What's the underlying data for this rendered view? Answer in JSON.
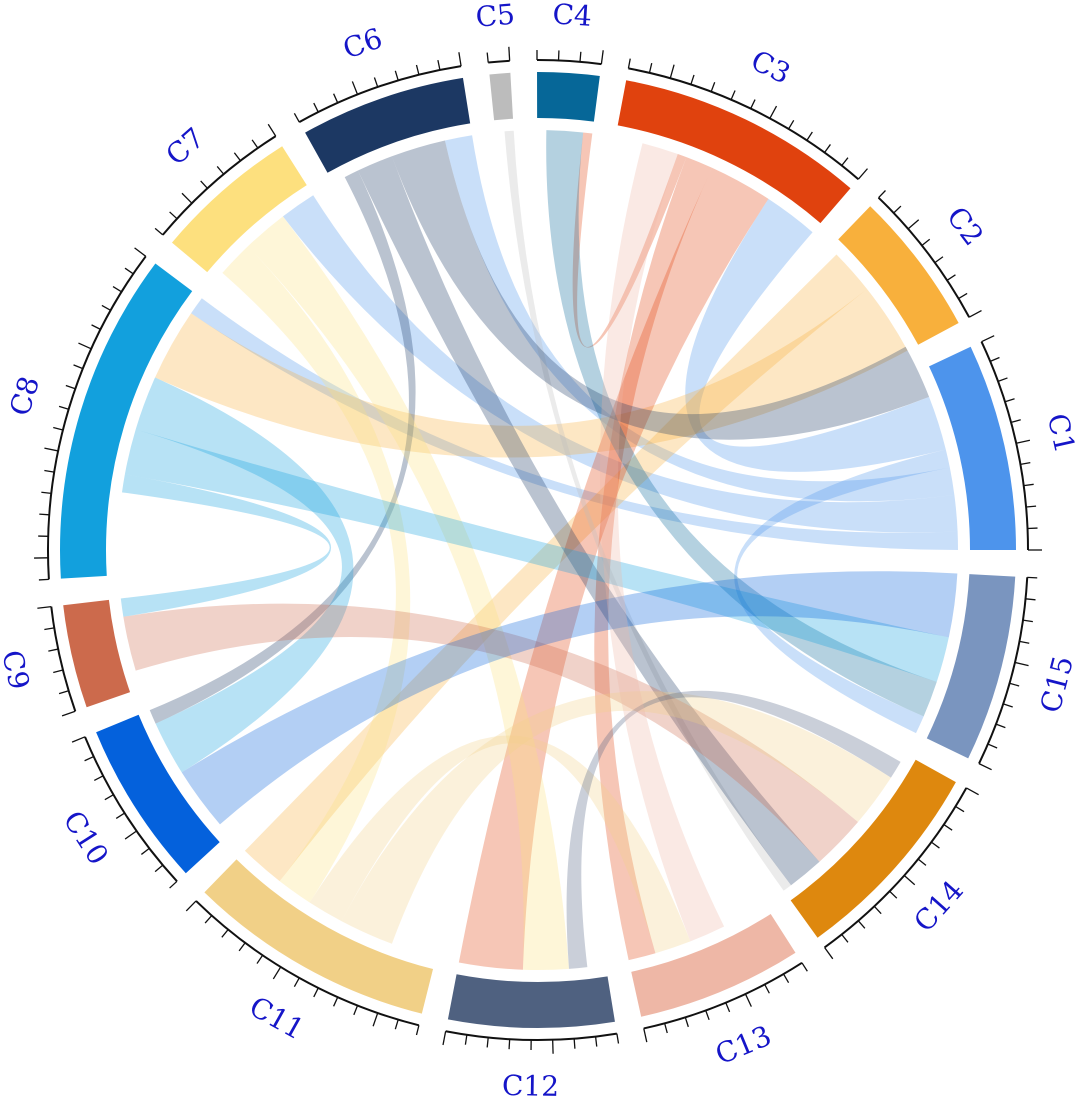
{
  "chart_data": {
    "type": "chord",
    "sectors": [
      {
        "name": "C1",
        "value": 10,
        "color": "#4d94ec"
      },
      {
        "name": "C2",
        "value": 7,
        "color": "#f8b03c"
      },
      {
        "name": "C3",
        "value": 12,
        "color": "#e0420e"
      },
      {
        "name": "C4",
        "value": 3,
        "color": "#066798"
      },
      {
        "name": "C5",
        "value": 1,
        "color": "#bcbcbc"
      },
      {
        "name": "C6",
        "value": 8,
        "color": "#1c3863"
      },
      {
        "name": "C7",
        "value": 7,
        "color": "#fde07e"
      },
      {
        "name": "C8",
        "value": 16,
        "color": "#12a0dd"
      },
      {
        "name": "C9",
        "value": 5,
        "color": "#cc6a4c"
      },
      {
        "name": "C10",
        "value": 8,
        "color": "#0461dc"
      },
      {
        "name": "C11",
        "value": 12,
        "color": "#f1d087"
      },
      {
        "name": "C12",
        "value": 8,
        "color": "#4f6180"
      },
      {
        "name": "C13",
        "value": 8,
        "color": "#eeb7a6"
      },
      {
        "name": "C14",
        "value": 10,
        "color": "#de880e"
      },
      {
        "name": "C15",
        "value": 9,
        "color": "#7a95bf"
      }
    ],
    "links": [
      {
        "source": "C1",
        "target": "C8",
        "value": 1.0
      },
      {
        "source": "C1",
        "target": "C7",
        "value": 2.0
      },
      {
        "source": "C1",
        "target": "C6",
        "value": 1.5
      },
      {
        "source": "C1",
        "target": "C15",
        "value": 1.0
      },
      {
        "source": "C1",
        "target": "C3",
        "value": 3.0
      },
      {
        "source": "C2",
        "target": "C8",
        "value": 4.0
      },
      {
        "source": "C2",
        "target": "C11",
        "value": 2.5
      },
      {
        "source": "C3",
        "target": "C12",
        "value": 3.5
      },
      {
        "source": "C3",
        "target": "C13",
        "value": 1.5
      },
      {
        "source": "C3",
        "target": "C4",
        "value": 0.5
      },
      {
        "source": "C4",
        "target": "C15",
        "value": 2.0
      },
      {
        "source": "C5",
        "target": "C14",
        "value": 0.5
      },
      {
        "source": "C6",
        "target": "C1",
        "value": 3.0
      },
      {
        "source": "C6",
        "target": "C14",
        "value": 2.0
      },
      {
        "source": "C6",
        "target": "C10",
        "value": 0.8
      },
      {
        "source": "C7",
        "target": "C12",
        "value": 2.5
      },
      {
        "source": "C7",
        "target": "C11",
        "value": 2.0
      },
      {
        "source": "C8",
        "target": "C10",
        "value": 3.0
      },
      {
        "source": "C8",
        "target": "C15",
        "value": 2.5
      },
      {
        "source": "C8",
        "target": "C9",
        "value": 1.0
      },
      {
        "source": "C9",
        "target": "C14",
        "value": 3.0
      },
      {
        "source": "C10",
        "target": "C15",
        "value": 3.5
      },
      {
        "source": "C11",
        "target": "C13",
        "value": 2.0
      },
      {
        "source": "C11",
        "target": "C14",
        "value": 3.0
      },
      {
        "source": "C12",
        "target": "C14",
        "value": 1.0
      },
      {
        "source": "C13",
        "target": "C3",
        "value": 2.0
      }
    ]
  }
}
